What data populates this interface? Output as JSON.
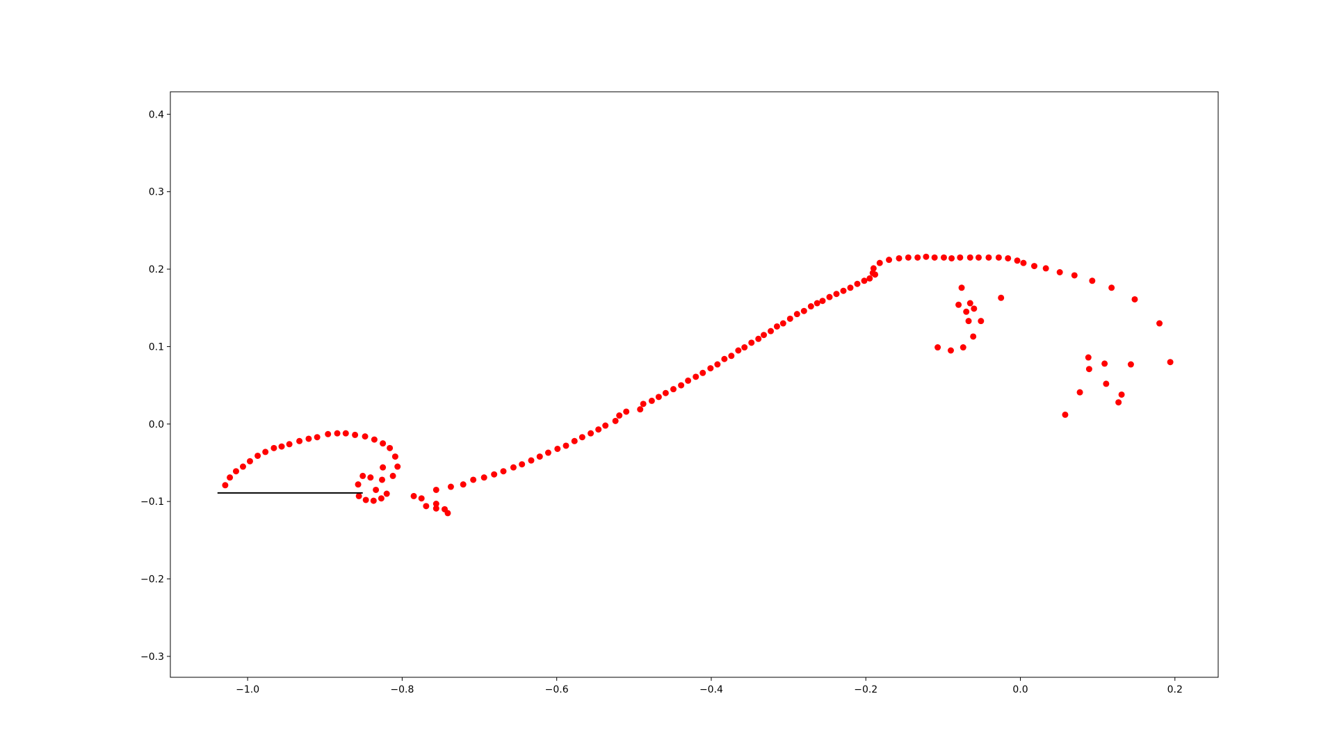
{
  "chart_data": {
    "type": "scatter",
    "xlim": [
      -1.1,
      0.256
    ],
    "ylim": [
      -0.327,
      0.429
    ],
    "xticks": [
      {
        "value": -1.0,
        "label": "−1.0"
      },
      {
        "value": -0.8,
        "label": "−0.8"
      },
      {
        "value": -0.6,
        "label": "−0.6"
      },
      {
        "value": -0.4,
        "label": "−0.4"
      },
      {
        "value": -0.2,
        "label": "−0.2"
      },
      {
        "value": 0.0,
        "label": "0.0"
      },
      0.2
    ],
    "yticks": [
      {
        "value": -0.3,
        "label": "−0.3"
      },
      {
        "value": -0.2,
        "label": "−0.2"
      },
      {
        "value": -0.1,
        "label": "−0.1"
      },
      {
        "value": 0.0,
        "label": "0.0"
      },
      0.1,
      0.2,
      0.3,
      0.4
    ],
    "series": [
      {
        "color": "#ff0000",
        "x": [
          -1.029,
          -1.023,
          -1.015,
          -1.006,
          -0.997,
          -0.987,
          -0.977,
          -0.966,
          -0.956,
          -0.946,
          -0.933,
          -0.921,
          -0.91,
          -0.896,
          -0.884,
          -0.873,
          -0.861,
          -0.848,
          -0.836,
          -0.825,
          -0.816,
          -0.809,
          -0.806,
          -0.812,
          -0.82,
          -0.827,
          -0.837,
          -0.847,
          -0.856,
          -0.857,
          -0.851,
          -0.841,
          -0.826,
          -0.825,
          -0.834,
          -0.785,
          -0.775,
          -0.769,
          -0.756,
          -0.756,
          -0.756,
          -0.745,
          -0.741,
          -0.737,
          -0.721,
          -0.708,
          -0.694,
          -0.681,
          -0.669,
          -0.656,
          -0.645,
          -0.633,
          -0.622,
          -0.611,
          -0.599,
          -0.588,
          -0.577,
          -0.567,
          -0.556,
          -0.546,
          -0.537,
          -0.524,
          -0.519,
          -0.51,
          -0.492,
          -0.488,
          -0.477,
          -0.468,
          -0.459,
          -0.449,
          -0.439,
          -0.43,
          -0.42,
          -0.411,
          -0.401,
          -0.392,
          -0.383,
          -0.374,
          -0.365,
          -0.357,
          -0.348,
          -0.339,
          -0.332,
          -0.323,
          -0.315,
          -0.307,
          -0.298,
          -0.289,
          -0.28,
          -0.271,
          -0.263,
          -0.256,
          -0.247,
          -0.238,
          -0.229,
          -0.22,
          -0.211,
          -0.202,
          -0.195,
          -0.191,
          -0.19,
          -0.188,
          -0.182,
          -0.17,
          -0.157,
          -0.145,
          -0.133,
          -0.122,
          -0.111,
          -0.099,
          -0.089,
          -0.078,
          -0.065,
          -0.054,
          -0.041,
          -0.028,
          -0.016,
          -0.004,
          0.004,
          0.018,
          0.033,
          0.051,
          0.07,
          0.093,
          0.118,
          0.148,
          0.18,
          0.194,
          -0.076,
          -0.08,
          -0.07,
          -0.065,
          -0.06,
          -0.067,
          -0.051,
          -0.061,
          -0.074,
          -0.107,
          -0.09,
          -0.025,
          0.088,
          0.089,
          0.109,
          0.143,
          0.111,
          0.077,
          0.131,
          0.127,
          0.058
        ],
        "y": [
          -0.079,
          -0.069,
          -0.061,
          -0.055,
          -0.048,
          -0.041,
          -0.036,
          -0.031,
          -0.029,
          -0.026,
          -0.022,
          -0.019,
          -0.017,
          -0.013,
          -0.012,
          -0.012,
          -0.014,
          -0.016,
          -0.02,
          -0.025,
          -0.031,
          -0.042,
          -0.055,
          -0.067,
          -0.09,
          -0.096,
          -0.099,
          -0.098,
          -0.093,
          -0.078,
          -0.067,
          -0.069,
          -0.072,
          -0.056,
          -0.085,
          -0.093,
          -0.096,
          -0.106,
          -0.085,
          -0.103,
          -0.109,
          -0.11,
          -0.115,
          -0.081,
          -0.078,
          -0.072,
          -0.069,
          -0.065,
          -0.061,
          -0.056,
          -0.052,
          -0.047,
          -0.042,
          -0.037,
          -0.032,
          -0.028,
          -0.022,
          -0.017,
          -0.012,
          -0.007,
          -0.002,
          0.004,
          0.011,
          0.016,
          0.019,
          0.026,
          0.03,
          0.035,
          0.04,
          0.045,
          0.05,
          0.056,
          0.061,
          0.066,
          0.072,
          0.077,
          0.084,
          0.088,
          0.095,
          0.099,
          0.105,
          0.11,
          0.115,
          0.12,
          0.126,
          0.13,
          0.136,
          0.142,
          0.146,
          0.152,
          0.156,
          0.159,
          0.164,
          0.168,
          0.172,
          0.176,
          0.181,
          0.185,
          0.188,
          0.195,
          0.201,
          0.193,
          0.208,
          0.212,
          0.214,
          0.215,
          0.215,
          0.216,
          0.215,
          0.215,
          0.214,
          0.215,
          0.215,
          0.215,
          0.215,
          0.215,
          0.214,
          0.211,
          0.208,
          0.204,
          0.201,
          0.196,
          0.192,
          0.185,
          0.176,
          0.161,
          0.13,
          0.08,
          0.176,
          0.154,
          0.145,
          0.156,
          0.149,
          0.133,
          0.133,
          0.113,
          0.099,
          0.099,
          0.095,
          0.163,
          0.086,
          0.071,
          0.078,
          0.077,
          0.052,
          0.041,
          0.038,
          0.028,
          0.012
        ]
      }
    ],
    "lines": [
      {
        "color": "#000000",
        "x": [
          -1.039,
          -0.851
        ],
        "y": [
          -0.089,
          -0.089
        ]
      }
    ]
  }
}
